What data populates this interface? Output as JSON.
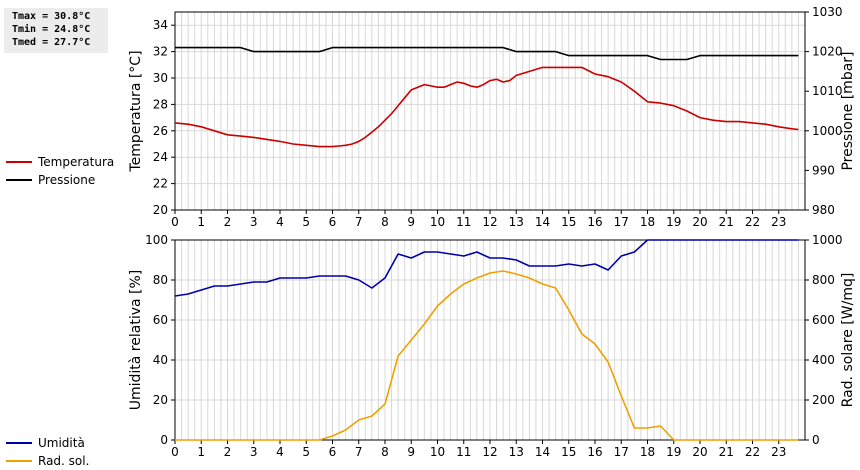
{
  "stats": {
    "tmax": "Tmax = 30.8°C",
    "tmin": "Tmin = 24.8°C",
    "tmed": "Tmed = 27.7°C"
  },
  "legend_top": [
    {
      "label": "Temperatura",
      "color": "#cc0000"
    },
    {
      "label": "Pressione",
      "color": "#000000"
    }
  ],
  "legend_bottom": [
    {
      "label": "Umidità",
      "color": "#0000aa"
    },
    {
      "label": "Rad. sol.",
      "color": "#f0a000"
    }
  ],
  "chart_data": [
    {
      "type": "line",
      "xlim": [
        0,
        24
      ],
      "x_ticks": [
        0,
        1,
        2,
        3,
        4,
        5,
        6,
        7,
        8,
        9,
        10,
        11,
        12,
        13,
        14,
        15,
        16,
        17,
        18,
        19,
        20,
        21,
        22,
        23
      ],
      "ylabel": "Temperatura [°C]",
      "ylim": [
        20,
        35
      ],
      "y_ticks": [
        20,
        22,
        24,
        26,
        28,
        30,
        32,
        34
      ],
      "y2label": "Pressione [mbar]",
      "y2lim": [
        980,
        1030
      ],
      "y2_ticks": [
        980,
        990,
        1000,
        1010,
        1020,
        1030
      ],
      "grid": true,
      "legend": "left",
      "series": [
        {
          "name": "Temperatura",
          "axis": "left",
          "color": "#cc0000",
          "x": [
            0,
            0.5,
            1,
            1.5,
            2,
            2.5,
            3,
            3.5,
            4,
            4.5,
            5,
            5.5,
            6,
            6.25,
            6.5,
            6.75,
            7,
            7.25,
            7.5,
            7.75,
            8,
            8.25,
            8.5,
            8.75,
            9,
            9.25,
            9.5,
            9.75,
            10,
            10.25,
            10.5,
            10.75,
            11,
            11.25,
            11.5,
            11.75,
            12,
            12.25,
            12.5,
            12.75,
            13,
            13.5,
            14,
            14.25,
            14.5,
            15,
            15.5,
            16,
            16.5,
            17,
            17.5,
            18,
            18.5,
            19,
            19.5,
            20,
            20.5,
            21,
            21.5,
            22,
            22.5,
            23,
            23.5,
            23.75
          ],
          "y": [
            26.6,
            26.5,
            26.3,
            26.0,
            25.7,
            25.6,
            25.5,
            25.35,
            25.2,
            25.0,
            24.9,
            24.8,
            24.8,
            24.85,
            24.9,
            25.0,
            25.2,
            25.5,
            25.9,
            26.3,
            26.8,
            27.3,
            27.9,
            28.5,
            29.1,
            29.3,
            29.5,
            29.4,
            29.3,
            29.3,
            29.5,
            29.7,
            29.6,
            29.4,
            29.3,
            29.5,
            29.8,
            29.9,
            29.7,
            29.8,
            30.2,
            30.5,
            30.8,
            30.8,
            30.8,
            30.8,
            30.8,
            30.3,
            30.1,
            29.7,
            29.0,
            28.2,
            28.1,
            27.9,
            27.5,
            27.0,
            26.8,
            26.7,
            26.7,
            26.6,
            26.5,
            26.3,
            26.15,
            26.1
          ]
        },
        {
          "name": "Pressione",
          "axis": "right",
          "color": "#000000",
          "x": [
            0,
            1,
            2,
            2.5,
            3,
            4,
            5,
            5.5,
            6,
            7,
            8,
            9,
            10,
            11,
            12,
            12.5,
            13,
            13.5,
            14,
            14.5,
            15,
            16,
            17,
            18,
            18.5,
            19,
            19.5,
            20,
            21,
            22,
            23,
            23.75
          ],
          "y": [
            1021,
            1021,
            1021,
            1021,
            1020,
            1020,
            1020,
            1020,
            1021,
            1021,
            1021,
            1021,
            1021,
            1021,
            1021,
            1021,
            1020,
            1020,
            1020,
            1020,
            1019,
            1019,
            1019,
            1019,
            1018,
            1018,
            1018,
            1019,
            1019,
            1019,
            1019,
            1019
          ]
        }
      ]
    },
    {
      "type": "line",
      "xlim": [
        0,
        24
      ],
      "x_ticks": [
        0,
        1,
        2,
        3,
        4,
        5,
        6,
        7,
        8,
        9,
        10,
        11,
        12,
        13,
        14,
        15,
        16,
        17,
        18,
        19,
        20,
        21,
        22,
        23
      ],
      "ylabel": "Umidità relativa [%]",
      "ylim": [
        0,
        100
      ],
      "y_ticks": [
        0,
        20,
        40,
        60,
        80,
        100
      ],
      "y2label": "Rad. solare [W/mq]",
      "y2lim": [
        0,
        1000
      ],
      "y2_ticks": [
        0,
        200,
        400,
        600,
        800,
        1000
      ],
      "grid": true,
      "legend": "left",
      "series": [
        {
          "name": "Umidità",
          "axis": "left",
          "color": "#0000aa",
          "x": [
            0,
            0.5,
            1,
            1.5,
            2,
            2.5,
            3,
            3.5,
            4,
            4.5,
            5,
            5.5,
            6,
            6.5,
            7,
            7.5,
            8,
            8.5,
            9,
            9.5,
            10,
            10.5,
            11,
            11.5,
            12,
            12.5,
            13,
            13.5,
            14,
            14.5,
            15,
            15.5,
            16,
            16.5,
            17,
            17.5,
            18,
            18.5,
            19,
            20,
            21,
            22,
            23,
            23.75
          ],
          "y": [
            72,
            73,
            75,
            77,
            77,
            78,
            79,
            79,
            81,
            81,
            81,
            82,
            82,
            82,
            80,
            76,
            81,
            93,
            91,
            94,
            94,
            93,
            92,
            94,
            91,
            91,
            90,
            87,
            87,
            87,
            88,
            87,
            88,
            85,
            92,
            94,
            100,
            100,
            100,
            100,
            100,
            100,
            100,
            100
          ]
        },
        {
          "name": "Rad. sol.",
          "axis": "right",
          "color": "#f0a000",
          "x": [
            0,
            1,
            2,
            3,
            4,
            5,
            5.5,
            6,
            6.5,
            7,
            7.5,
            8,
            8.5,
            9,
            9.5,
            10,
            10.5,
            11,
            11.5,
            12,
            12.5,
            13,
            13.5,
            14,
            14.5,
            15,
            15.5,
            16,
            16.5,
            17,
            17.5,
            18,
            18.5,
            19,
            20,
            21,
            22,
            23,
            23.75
          ],
          "y": [
            0,
            0,
            0,
            0,
            0,
            0,
            0,
            20,
            50,
            100,
            120,
            180,
            420,
            500,
            580,
            670,
            730,
            780,
            810,
            835,
            845,
            830,
            810,
            780,
            760,
            650,
            530,
            480,
            390,
            220,
            60,
            60,
            70,
            0,
            0,
            0,
            0,
            0,
            0
          ]
        }
      ]
    }
  ]
}
